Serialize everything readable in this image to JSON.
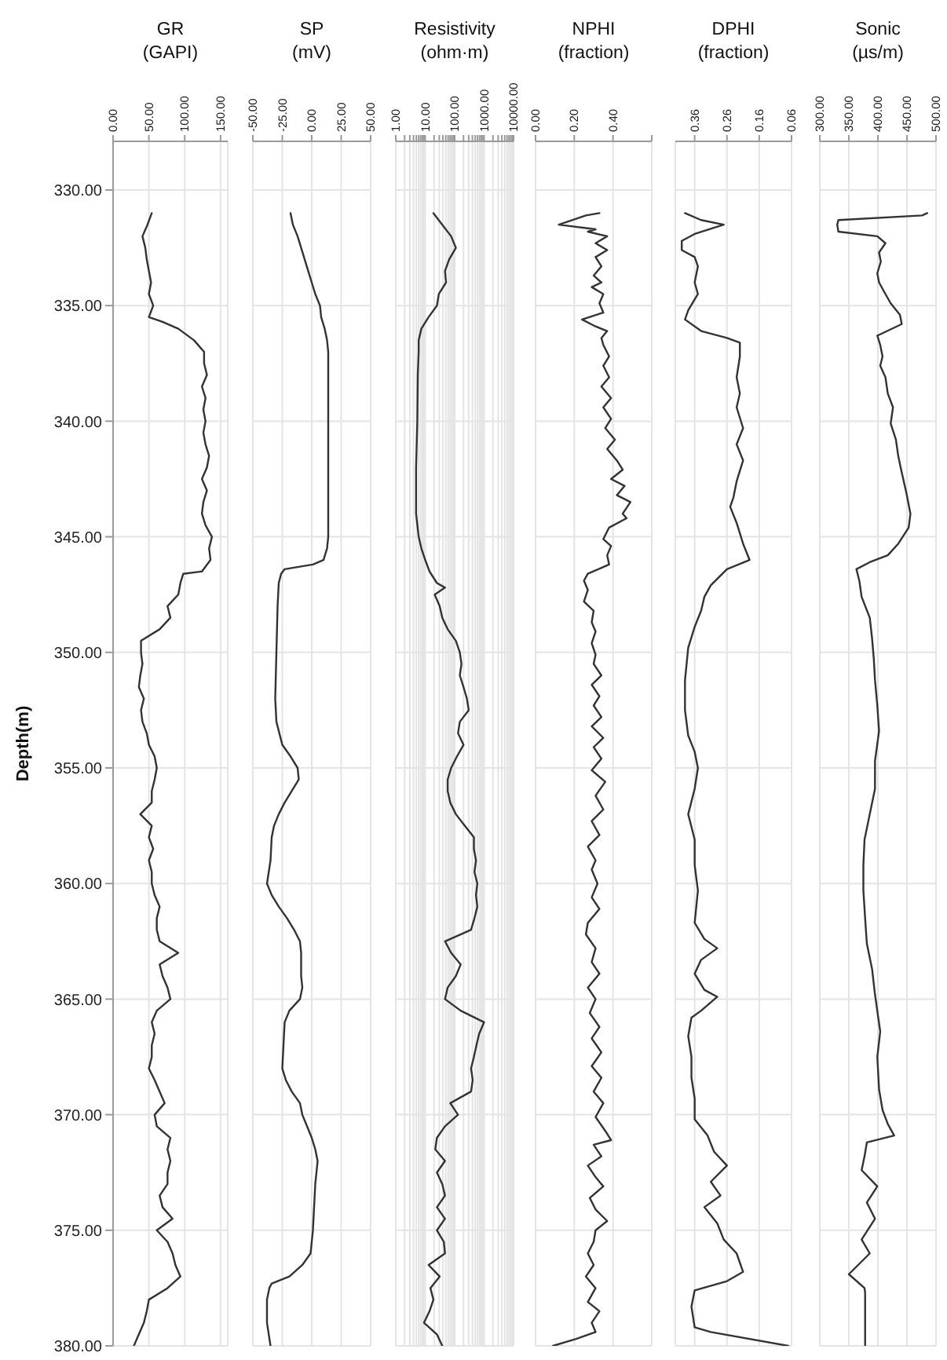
{
  "chart_data": [
    {
      "type": "line",
      "title": "GR",
      "xlabel": "(GAPI)",
      "ylabel": "Depth(m)",
      "color": "#333333",
      "x": [
        54,
        48,
        41,
        45,
        47,
        50,
        53,
        50,
        56,
        50,
        69,
        91,
        113,
        127,
        127,
        131,
        124,
        129,
        126,
        129,
        126,
        129,
        134,
        131,
        124,
        131,
        126,
        124,
        129,
        138,
        134,
        136,
        124,
        98,
        94,
        91,
        76,
        80,
        65,
        39,
        39,
        41,
        38,
        36,
        43,
        39,
        41,
        47,
        50,
        58,
        61,
        58,
        54,
        54,
        38,
        54,
        50,
        56,
        50,
        54,
        54,
        58,
        65,
        61,
        61,
        65,
        91,
        65,
        69,
        76,
        80,
        61,
        54,
        58,
        54,
        54,
        50,
        58,
        65,
        72,
        58,
        61,
        80,
        76,
        80,
        76,
        76,
        65,
        69,
        83,
        61,
        76,
        83,
        87,
        94,
        76,
        50,
        47,
        43,
        36,
        29
      ],
      "values": [
        331,
        331.5,
        332,
        332.5,
        333,
        333.5,
        334,
        334.5,
        335,
        335.5,
        335.7,
        336,
        336.5,
        337,
        337.5,
        338,
        338.5,
        339,
        339.5,
        340,
        340.5,
        341,
        341.5,
        342,
        342.5,
        343,
        343.5,
        344,
        344.5,
        345,
        345.5,
        346,
        346.5,
        346.6,
        347,
        347.5,
        348,
        348.5,
        349,
        349.5,
        350,
        350.5,
        351,
        351.5,
        352,
        352.5,
        353,
        353.5,
        354,
        354.5,
        355,
        355.5,
        356,
        356.5,
        357,
        357.5,
        358,
        358.5,
        359,
        359.5,
        360,
        360.5,
        361,
        361.5,
        362,
        362.5,
        363,
        363.5,
        364,
        364.5,
        365,
        365.5,
        366,
        366.5,
        367,
        367.5,
        368,
        368.5,
        369,
        369.5,
        370,
        370.5,
        371,
        371.5,
        372,
        372.5,
        373,
        373.5,
        374,
        374.5,
        375,
        375.5,
        376,
        376.5,
        377,
        377.5,
        378,
        378.5,
        379,
        379.5,
        380
      ],
      "xlim": [
        0,
        160
      ],
      "xticks": [
        {
          "value": 0,
          "label": "0.00"
        },
        {
          "value": 50,
          "label": "50.00"
        },
        {
          "value": 100,
          "label": "100.00"
        },
        {
          "value": 150,
          "label": "150.00"
        }
      ],
      "ylim": [
        380,
        330
      ],
      "yticks": [
        {
          "value": 330,
          "label": "330.00"
        },
        {
          "value": 335,
          "label": "335.00"
        },
        {
          "value": 340,
          "label": "340.00"
        },
        {
          "value": 345,
          "label": "345.00"
        },
        {
          "value": 350,
          "label": "350.00"
        },
        {
          "value": 355,
          "label": "355.00"
        },
        {
          "value": 360,
          "label": "360.00"
        },
        {
          "value": 365,
          "label": "365.00"
        },
        {
          "value": 370,
          "label": "370.00"
        },
        {
          "value": 375,
          "label": "375.00"
        },
        {
          "value": 380,
          "label": "380.00"
        }
      ],
      "grid": true
    },
    {
      "type": "line",
      "title": "SP",
      "xlabel": "(mV)",
      "color": "#333333",
      "x": [
        -18,
        -16,
        -12,
        -9,
        -6,
        -3,
        0,
        3,
        7,
        8,
        11,
        13,
        14,
        14,
        14,
        14,
        14,
        14,
        14,
        14,
        14,
        13,
        10,
        1,
        -23,
        -26,
        -28,
        -29,
        -30,
        -31,
        -30,
        -25,
        -18,
        -12,
        -11,
        -17,
        -23,
        -28,
        -32,
        -34,
        -35,
        -38,
        -34,
        -28,
        -21,
        -15,
        -10,
        -9,
        -9,
        -8,
        -10,
        -19,
        -23,
        -24,
        -25,
        -22,
        -17,
        -10,
        -8,
        -4,
        0,
        3,
        5,
        3,
        2,
        1,
        -1,
        -8,
        -19,
        -34,
        -36,
        -38,
        -38,
        -35
      ],
      "values": [
        331,
        331.5,
        332,
        332.5,
        333,
        333.5,
        334,
        334.5,
        335,
        335.5,
        336,
        336.5,
        337,
        338,
        339,
        340,
        341,
        342,
        343,
        344,
        345,
        345.5,
        346,
        346.2,
        346.4,
        346.6,
        347,
        348,
        350,
        352,
        353,
        354,
        354.5,
        355,
        355.5,
        356,
        356.5,
        357,
        357.5,
        358,
        359,
        360,
        360.5,
        361,
        361.5,
        362,
        362.5,
        363,
        364,
        364.5,
        365,
        365.5,
        366,
        367,
        368,
        368.5,
        369,
        369.5,
        370,
        370.5,
        371,
        371.5,
        372,
        373,
        374,
        375,
        376,
        376.5,
        377,
        377.3,
        377.5,
        378,
        379,
        380
      ],
      "xlim": [
        -50,
        50
      ],
      "xticks": [
        {
          "value": -50,
          "label": "-50.00"
        },
        {
          "value": -25,
          "label": "-25.00"
        },
        {
          "value": 0,
          "label": "0.00"
        },
        {
          "value": 25,
          "label": "25.00"
        },
        {
          "value": 50,
          "label": "50.00"
        }
      ],
      "ylim": [
        380,
        330
      ],
      "yticks": [
        330,
        335,
        340,
        345,
        350,
        355,
        360,
        365,
        370,
        375,
        380
      ],
      "grid": true,
      "tick_labels": "x"
    },
    {
      "type": "line",
      "title": "Resistivity",
      "xlabel": "(ohm·m)",
      "color": "#333333",
      "log": "x",
      "x": [
        19,
        38,
        76,
        110,
        65,
        47,
        51,
        29,
        25,
        13,
        7.4,
        6,
        6,
        5.6,
        5.4,
        4.9,
        4.9,
        6,
        7.4,
        10,
        14,
        25,
        47,
        21,
        31,
        38,
        58,
        110,
        150,
        170,
        150,
        200,
        260,
        300,
        150,
        130,
        200,
        120,
        76,
        58,
        58,
        71,
        110,
        220,
        450,
        450,
        530,
        470,
        590,
        530,
        590,
        470,
        360,
        47,
        76,
        160,
        110,
        58,
        47,
        160,
        1000,
        680,
        550,
        450,
        360,
        410,
        360,
        71,
        130,
        47,
        25,
        22,
        47,
        25,
        38,
        47,
        25,
        47,
        25,
        43,
        47,
        13,
        31,
        15,
        19,
        14,
        9.1,
        25,
        38
      ],
      "values": [
        331,
        331.5,
        332,
        332.5,
        333,
        333.5,
        334,
        334.5,
        335,
        335.5,
        336,
        336.5,
        337,
        338,
        340,
        342,
        344,
        345,
        345.5,
        346,
        346.5,
        347,
        347.2,
        347.5,
        348,
        348.5,
        349,
        349.5,
        350,
        350.5,
        351,
        351.5,
        352,
        352.5,
        353,
        353.5,
        354,
        354.5,
        355,
        355.5,
        356,
        356.5,
        357,
        357.5,
        358,
        358.5,
        359,
        359.5,
        360,
        360.5,
        361,
        361.5,
        362,
        362.5,
        363,
        363.5,
        364,
        364.5,
        365,
        365.5,
        366,
        366.5,
        367,
        367.5,
        368,
        368.5,
        369,
        369.5,
        370,
        370.5,
        371,
        371.5,
        372,
        372.5,
        373,
        373.5,
        374,
        374.5,
        375,
        375.5,
        376,
        376.5,
        377,
        377.5,
        378,
        378.5,
        379,
        379.5,
        380
      ],
      "xlim": [
        1,
        10000
      ],
      "xticks": [
        {
          "value": 1,
          "label": "1.00"
        },
        {
          "value": 2,
          "label": null
        },
        {
          "value": 3,
          "label": null
        },
        {
          "value": 4,
          "label": null
        },
        {
          "value": 5,
          "label": null
        },
        {
          "value": 6,
          "label": null
        },
        {
          "value": 7,
          "label": null
        },
        {
          "value": 8,
          "label": null
        },
        {
          "value": 9,
          "label": null
        },
        {
          "value": 10,
          "label": "10.00"
        },
        {
          "value": 20,
          "label": null
        },
        {
          "value": 30,
          "label": null
        },
        {
          "value": 40,
          "label": null
        },
        {
          "value": 50,
          "label": null
        },
        {
          "value": 60,
          "label": null
        },
        {
          "value": 70,
          "label": null
        },
        {
          "value": 80,
          "label": null
        },
        {
          "value": 90,
          "label": null
        },
        {
          "value": 100,
          "label": "100.00"
        },
        {
          "value": 200,
          "label": null
        },
        {
          "value": 300,
          "label": null
        },
        {
          "value": 400,
          "label": null
        },
        {
          "value": 500,
          "label": null
        },
        {
          "value": 600,
          "label": null
        },
        {
          "value": 700,
          "label": null
        },
        {
          "value": 800,
          "label": null
        },
        {
          "value": 900,
          "label": null
        },
        {
          "value": 1000,
          "label": "1000.00"
        },
        {
          "value": 2000,
          "label": null
        },
        {
          "value": 3000,
          "label": null
        },
        {
          "value": 4000,
          "label": null
        },
        {
          "value": 5000,
          "label": null
        },
        {
          "value": 6000,
          "label": null
        },
        {
          "value": 7000,
          "label": null
        },
        {
          "value": 8000,
          "label": null
        },
        {
          "value": 9000,
          "label": null
        },
        {
          "value": 10000,
          "label": "10000.00"
        }
      ],
      "ylim": [
        380,
        330
      ],
      "yticks": [
        330,
        335,
        340,
        345,
        350,
        355,
        360,
        365,
        370,
        375,
        380
      ],
      "grid": true,
      "tick_labels": "x"
    },
    {
      "type": "line",
      "title": "NPHI",
      "xlabel": "(fraction)",
      "color": "#333333",
      "x": [
        0.33,
        0.26,
        0.12,
        0.31,
        0.27,
        0.37,
        0.31,
        0.37,
        0.31,
        0.34,
        0.3,
        0.34,
        0.29,
        0.35,
        0.33,
        0.35,
        0.24,
        0.31,
        0.37,
        0.34,
        0.35,
        0.38,
        0.35,
        0.38,
        0.34,
        0.39,
        0.35,
        0.39,
        0.36,
        0.41,
        0.37,
        0.42,
        0.45,
        0.39,
        0.46,
        0.42,
        0.49,
        0.45,
        0.47,
        0.38,
        0.35,
        0.39,
        0.37,
        0.38,
        0.27,
        0.25,
        0.27,
        0.25,
        0.3,
        0.29,
        0.31,
        0.29,
        0.31,
        0.3,
        0.34,
        0.29,
        0.33,
        0.3,
        0.34,
        0.29,
        0.35,
        0.3,
        0.34,
        0.29,
        0.36,
        0.31,
        0.35,
        0.29,
        0.33,
        0.27,
        0.31,
        0.29,
        0.32,
        0.29,
        0.33,
        0.27,
        0.26,
        0.31,
        0.29,
        0.33,
        0.27,
        0.31,
        0.28,
        0.33,
        0.29,
        0.34,
        0.29,
        0.34,
        0.3,
        0.35,
        0.31,
        0.36,
        0.39,
        0.3,
        0.34,
        0.27,
        0.31,
        0.35,
        0.28,
        0.31,
        0.37,
        0.31,
        0.3,
        0.27,
        0.3,
        0.26,
        0.31,
        0.27,
        0.33,
        0.29,
        0.31,
        0.21,
        0.09
      ],
      "values": [
        331.0,
        331.1,
        331.5,
        331.7,
        331.8,
        332.0,
        332.3,
        332.6,
        332.9,
        333.3,
        333.7,
        334.0,
        334.2,
        334.5,
        334.9,
        335.3,
        335.6,
        335.9,
        336.1,
        336.4,
        336.7,
        337.2,
        337.6,
        338.1,
        338.5,
        339.0,
        339.4,
        339.9,
        340.3,
        340.8,
        341.2,
        341.7,
        342.1,
        342.5,
        342.8,
        343.2,
        343.5,
        344.0,
        344.2,
        344.6,
        345.1,
        345.4,
        345.8,
        346.2,
        346.6,
        346.9,
        347.3,
        347.8,
        348.2,
        348.7,
        349.1,
        349.6,
        350.1,
        350.5,
        351.0,
        351.4,
        351.9,
        352.3,
        352.8,
        353.2,
        353.7,
        354.1,
        354.6,
        355.1,
        355.6,
        356.2,
        356.8,
        357.3,
        357.9,
        358.4,
        359.0,
        359.4,
        360.0,
        360.6,
        361.1,
        361.7,
        362.2,
        362.8,
        363.4,
        363.9,
        364.5,
        365.0,
        365.6,
        366.2,
        366.7,
        367.3,
        367.9,
        368.4,
        369.0,
        369.5,
        370.1,
        370.7,
        371.1,
        371.3,
        371.8,
        372.2,
        372.7,
        373.1,
        373.6,
        374.1,
        374.6,
        375.0,
        375.5,
        376.0,
        376.5,
        377.0,
        377.5,
        378.1,
        378.5,
        379.0,
        379.4,
        379.7,
        380.0
      ],
      "xlim": [
        0,
        0.6
      ],
      "xticks": [
        {
          "value": 0,
          "label": "0.00"
        },
        {
          "value": 0.2,
          "label": "0.20"
        },
        {
          "value": 0.4,
          "label": "0.40"
        },
        {
          "value": 0.6,
          "label": null
        }
      ],
      "ylim": [
        380,
        330
      ],
      "yticks": [
        330,
        335,
        340,
        345,
        350,
        355,
        360,
        365,
        370,
        375,
        380
      ],
      "grid": true,
      "tick_labels": "x"
    },
    {
      "type": "line",
      "title": "DPHI",
      "xlabel": "(fraction)",
      "color": "#333333",
      "x": [
        0.39,
        0.34,
        0.27,
        0.36,
        0.4,
        0.4,
        0.36,
        0.35,
        0.36,
        0.35,
        0.38,
        0.39,
        0.34,
        0.26,
        0.22,
        0.22,
        0.23,
        0.22,
        0.23,
        0.21,
        0.23,
        0.21,
        0.23,
        0.24,
        0.25,
        0.23,
        0.21,
        0.19,
        0.26,
        0.31,
        0.33,
        0.34,
        0.36,
        0.38,
        0.39,
        0.39,
        0.38,
        0.36,
        0.35,
        0.36,
        0.38,
        0.36,
        0.36,
        0.35,
        0.36,
        0.33,
        0.29,
        0.34,
        0.36,
        0.33,
        0.29,
        0.34,
        0.37,
        0.38,
        0.37,
        0.37,
        0.36,
        0.36,
        0.32,
        0.3,
        0.26,
        0.31,
        0.28,
        0.33,
        0.29,
        0.27,
        0.23,
        0.21,
        0.26,
        0.36,
        0.37,
        0.36,
        0.31,
        0.07
      ],
      "values": [
        331.0,
        331.3,
        331.5,
        331.9,
        332.2,
        332.6,
        332.9,
        333.3,
        334.0,
        334.5,
        335.2,
        335.6,
        336.1,
        336.4,
        336.6,
        337.2,
        338.1,
        338.8,
        339.4,
        340.3,
        341.0,
        341.7,
        342.6,
        343.3,
        343.7,
        344.4,
        345.3,
        346.0,
        346.4,
        347.1,
        347.6,
        348.2,
        348.9,
        349.8,
        351.2,
        352.5,
        353.6,
        354.3,
        355.0,
        355.9,
        357.0,
        358.1,
        359.2,
        360.3,
        361.7,
        362.4,
        362.8,
        363.3,
        363.9,
        364.6,
        364.9,
        365.5,
        365.8,
        366.6,
        367.5,
        368.4,
        369.3,
        370.2,
        370.9,
        371.6,
        372.2,
        372.9,
        373.5,
        374.0,
        374.7,
        375.4,
        376.0,
        376.8,
        377.2,
        377.6,
        378.3,
        379.2,
        379.4,
        380.0
      ],
      "xlim": [
        0.42,
        0.06
      ],
      "xticks": [
        {
          "value": 0.36,
          "label": "0.36"
        },
        {
          "value": 0.26,
          "label": "0.26"
        },
        {
          "value": 0.16,
          "label": "0.16"
        },
        {
          "value": 0.06,
          "label": "0.06"
        }
      ],
      "ylim": [
        380,
        330
      ],
      "yticks": [
        330,
        335,
        340,
        345,
        350,
        355,
        360,
        365,
        370,
        375,
        380
      ],
      "grid": true,
      "tick_labels": "x"
    },
    {
      "type": "line",
      "title": "Sonic",
      "xlabel": "(µs/m)",
      "color": "#333333",
      "x": [
        485,
        476,
        332,
        330,
        332,
        399,
        413,
        402,
        405,
        399,
        402,
        413,
        422,
        438,
        441,
        399,
        404,
        408,
        404,
        413,
        417,
        426,
        422,
        431,
        435,
        440,
        449,
        456,
        453,
        435,
        417,
        386,
        363,
        368,
        372,
        386,
        390,
        393,
        395,
        399,
        402,
        395,
        395,
        386,
        377,
        375,
        375,
        378,
        381,
        390,
        395,
        404,
        399,
        402,
        408,
        417,
        428,
        381,
        377,
        372,
        399,
        381,
        395,
        372,
        386,
        350,
        377,
        378,
        378
      ],
      "values": [
        331.0,
        331.1,
        331.3,
        331.5,
        331.8,
        332.0,
        332.3,
        332.7,
        333.1,
        333.6,
        334.0,
        334.5,
        334.9,
        335.4,
        335.8,
        336.3,
        336.7,
        337.2,
        337.6,
        338.1,
        338.8,
        339.4,
        340.1,
        340.8,
        341.5,
        342.1,
        343.1,
        344.0,
        344.6,
        345.3,
        345.8,
        346.1,
        346.4,
        346.9,
        347.6,
        348.5,
        349.4,
        350.3,
        351.2,
        352.3,
        353.4,
        354.7,
        355.9,
        357.0,
        358.1,
        359.2,
        360.3,
        361.5,
        362.6,
        363.7,
        364.8,
        366.4,
        367.5,
        368.9,
        369.8,
        370.4,
        370.9,
        371.2,
        371.8,
        372.4,
        373.1,
        373.8,
        374.5,
        375.4,
        376.0,
        376.9,
        377.5,
        377.7,
        380.0
      ],
      "xlim": [
        300,
        500
      ],
      "xticks": [
        {
          "value": 300,
          "label": "300.00"
        },
        {
          "value": 350,
          "label": "350.00"
        },
        {
          "value": 400,
          "label": "400.00"
        },
        {
          "value": 450,
          "label": "450.00"
        },
        {
          "value": 500,
          "label": "500.00"
        }
      ],
      "ylim": [
        380,
        330
      ],
      "yticks": [
        330,
        335,
        340,
        345,
        350,
        355,
        360,
        365,
        370,
        375,
        380
      ],
      "grid": true,
      "tick_labels": "x"
    }
  ]
}
